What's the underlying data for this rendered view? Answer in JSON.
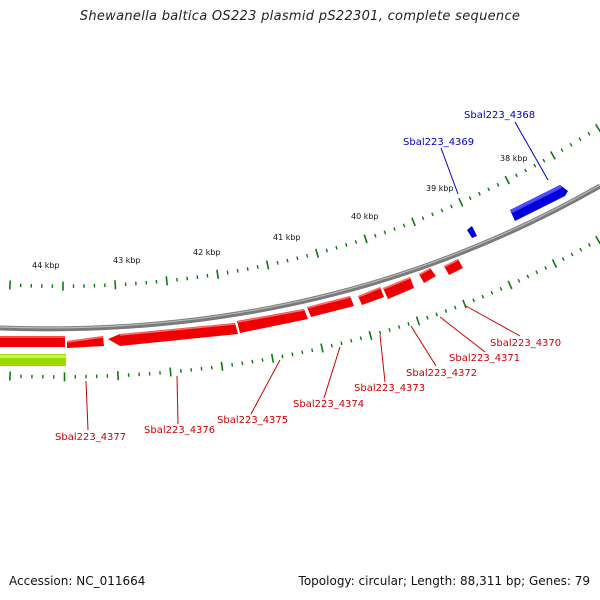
{
  "title": "Shewanella baltica OS223 plasmid pS22301, complete sequence",
  "footer": {
    "accession": "Accession: NC_011664",
    "summary": "Topology: circular; Length: 88,311 bp; Genes: 79"
  },
  "colors": {
    "forward_gene": "#0000dd",
    "reverse_gene": "#ee0000",
    "other_feature": "#99dd00",
    "backbone": "#888888",
    "ticks": "#117711",
    "forward_label": "#0000bb",
    "reverse_label": "#cc0000"
  },
  "scale_ticks": [
    "38 kbp",
    "39 kbp",
    "40 kbp",
    "41 kbp",
    "42 kbp",
    "43 kbp",
    "44 kbp"
  ],
  "forward_genes": [
    {
      "label": "Sbal223_4368"
    },
    {
      "label": "Sbal223_4369"
    }
  ],
  "reverse_genes": [
    {
      "label": "Sbal223_4370"
    },
    {
      "label": "Sbal223_4371"
    },
    {
      "label": "Sbal223_4372"
    },
    {
      "label": "Sbal223_4373"
    },
    {
      "label": "Sbal223_4374"
    },
    {
      "label": "Sbal223_4375"
    },
    {
      "label": "Sbal223_4376"
    },
    {
      "label": "Sbal223_4377"
    }
  ]
}
